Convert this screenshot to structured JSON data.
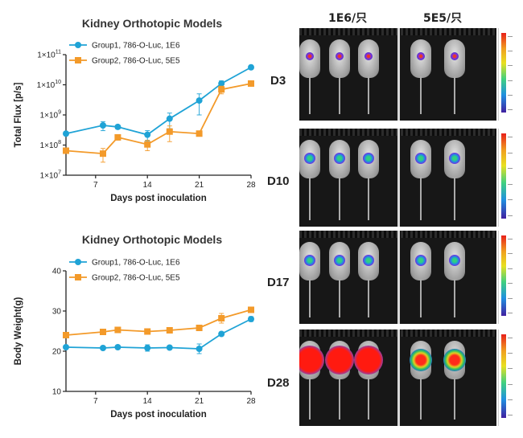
{
  "chart_data": [
    {
      "type": "line",
      "title": "Kidney Orthotopic Models",
      "xlabel": "Days post inoculation",
      "ylabel": "Total Flux [p/s]",
      "yscale": "log",
      "xlim": [
        3,
        28
      ],
      "ylim": [
        10000000,
        100000000000
      ],
      "xticks": [
        7,
        14,
        21,
        28
      ],
      "yticks": [
        {
          "value": 10000000,
          "label": "1×10",
          "exp": "7"
        },
        {
          "value": 100000000,
          "label": "1×10",
          "exp": "8"
        },
        {
          "value": 1000000000,
          "label": "1×10",
          "exp": "9"
        },
        {
          "value": 10000000000,
          "label": "1×10",
          "exp": "10"
        },
        {
          "value": 100000000000,
          "label": "1×10",
          "exp": "11"
        }
      ],
      "legend_position": "top-left",
      "series": [
        {
          "name": "Group1, 786-O-Luc, 1E6",
          "color": "#1fa3d6",
          "marker": "circle",
          "x": [
            3,
            8,
            10,
            14,
            17,
            21,
            24,
            28
          ],
          "y": [
            240000000,
            450000000,
            400000000,
            220000000,
            750000000,
            3000000000,
            11000000000,
            38000000000
          ],
          "err": [
            0,
            150000000,
            60000000,
            80000000,
            400000000,
            2000000000,
            2500000000,
            3000000000
          ]
        },
        {
          "name": "Group2, 786-O-Luc, 5E5",
          "color": "#f39a2a",
          "marker": "square",
          "x": [
            3,
            8,
            10,
            14,
            17,
            21,
            24,
            28
          ],
          "y": [
            65000000,
            52000000,
            180000000,
            105000000,
            280000000,
            240000000,
            7000000000,
            11000000000
          ],
          "err": [
            0,
            25000000,
            20000000,
            40000000,
            150000000,
            40000000,
            2000000000,
            2000000000
          ]
        }
      ]
    },
    {
      "type": "line",
      "title": "Kidney Orthotopic Models",
      "xlabel": "Days post inoculation",
      "ylabel": "Body Weight(g)",
      "xlim": [
        3,
        28
      ],
      "ylim": [
        10,
        40
      ],
      "xticks": [
        7,
        14,
        21,
        28
      ],
      "yticks": [
        10,
        20,
        30,
        40
      ],
      "legend_position": "top-left",
      "series": [
        {
          "name": "Group1, 786-O-Luc, 1E6",
          "color": "#1fa3d6",
          "marker": "circle",
          "x": [
            3,
            8,
            10,
            14,
            17,
            21,
            24,
            28
          ],
          "y": [
            21.0,
            20.8,
            21.0,
            20.8,
            20.9,
            20.6,
            24.3,
            28.0
          ],
          "err": [
            0,
            0.3,
            0.3,
            0.8,
            0.4,
            1.2,
            0.5,
            0.6
          ]
        },
        {
          "name": "Group2, 786-O-Luc, 5E5",
          "color": "#f39a2a",
          "marker": "square",
          "x": [
            3,
            8,
            10,
            14,
            17,
            21,
            24,
            28
          ],
          "y": [
            24.0,
            24.8,
            25.3,
            24.9,
            25.2,
            25.8,
            28.2,
            30.3
          ],
          "err": [
            0,
            0.4,
            0.5,
            0.4,
            0.3,
            0.4,
            1.2,
            0.4
          ]
        }
      ]
    }
  ],
  "imaging": {
    "columns": [
      "1E6/只",
      "5E5/只"
    ],
    "rows": [
      {
        "label": "D3",
        "group1_signal": "low",
        "group2_signal": "low"
      },
      {
        "label": "D10",
        "group1_signal": "medium",
        "group2_signal": "medium"
      },
      {
        "label": "D17",
        "group1_signal": "medium",
        "group2_signal": "medium"
      },
      {
        "label": "D28",
        "group1_signal": "saturated",
        "group2_signal": "high"
      }
    ],
    "colors": {
      "panel_bg": "#171717",
      "scale_top": "#e8201a",
      "scale_bottom": "#4020a0"
    }
  }
}
